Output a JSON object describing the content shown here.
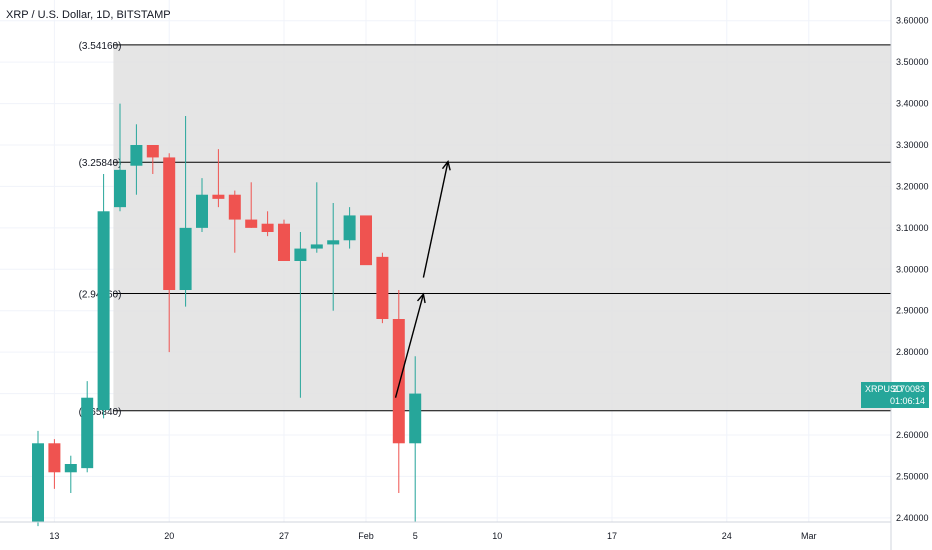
{
  "header": {
    "title": "XRP / U.S. Dollar, 1D, BITSTAMP"
  },
  "price_badge": {
    "symbol": "XRPUSD",
    "price": "2.70083",
    "countdown": "01:06:14"
  },
  "colors": {
    "up": "#26a69a",
    "down": "#ef5350",
    "zone": "#e0e0e0",
    "grid": "#f0f3fa",
    "text": "#131722"
  },
  "chart_data": {
    "type": "candlestick",
    "title": "XRP / U.S. Dollar, 1D, BITSTAMP",
    "ylim": [
      2.39,
      3.65
    ],
    "y_ticks": [
      "2.40000",
      "2.50000",
      "2.60000",
      "2.70000",
      "2.80000",
      "2.90000",
      "3.00000",
      "3.10000",
      "3.20000",
      "3.30000",
      "3.40000",
      "3.50000",
      "3.60000"
    ],
    "x_ticks": [
      {
        "label": "13",
        "index": 1
      },
      {
        "label": "20",
        "index": 8
      },
      {
        "label": "27",
        "index": 15
      },
      {
        "label": "Feb",
        "index": 20
      },
      {
        "label": "5",
        "index": 23
      },
      {
        "label": "10",
        "index": 28
      },
      {
        "label": "17",
        "index": 35
      },
      {
        "label": "24",
        "index": 42
      },
      {
        "label": "Mar",
        "index": 47
      }
    ],
    "candles": [
      {
        "o": 2.39,
        "h": 2.61,
        "l": 2.38,
        "c": 2.58
      },
      {
        "o": 2.58,
        "h": 2.59,
        "l": 2.47,
        "c": 2.51
      },
      {
        "o": 2.51,
        "h": 2.55,
        "l": 2.46,
        "c": 2.53
      },
      {
        "o": 2.52,
        "h": 2.73,
        "l": 2.51,
        "c": 2.69
      },
      {
        "o": 2.66,
        "h": 3.23,
        "l": 2.64,
        "c": 3.14
      },
      {
        "o": 3.15,
        "h": 3.4,
        "l": 3.14,
        "c": 3.24
      },
      {
        "o": 3.25,
        "h": 3.35,
        "l": 3.18,
        "c": 3.3
      },
      {
        "o": 3.3,
        "h": 3.3,
        "l": 3.23,
        "c": 3.27
      },
      {
        "o": 3.27,
        "h": 3.28,
        "l": 2.8,
        "c": 2.95
      },
      {
        "o": 2.95,
        "h": 3.37,
        "l": 2.91,
        "c": 3.1
      },
      {
        "o": 3.1,
        "h": 3.22,
        "l": 3.09,
        "c": 3.18
      },
      {
        "o": 3.18,
        "h": 3.29,
        "l": 3.15,
        "c": 3.17
      },
      {
        "o": 3.18,
        "h": 3.19,
        "l": 3.04,
        "c": 3.12
      },
      {
        "o": 3.12,
        "h": 3.21,
        "l": 3.1,
        "c": 3.1
      },
      {
        "o": 3.11,
        "h": 3.14,
        "l": 3.08,
        "c": 3.09
      },
      {
        "o": 3.11,
        "h": 3.12,
        "l": 3.02,
        "c": 3.02
      },
      {
        "o": 3.02,
        "h": 3.09,
        "l": 2.69,
        "c": 3.05
      },
      {
        "o": 3.05,
        "h": 3.21,
        "l": 3.04,
        "c": 3.06
      },
      {
        "o": 3.06,
        "h": 3.16,
        "l": 2.9,
        "c": 3.07
      },
      {
        "o": 3.07,
        "h": 3.15,
        "l": 3.05,
        "c": 3.13
      },
      {
        "o": 3.13,
        "h": 3.12,
        "l": 3.02,
        "c": 3.01
      },
      {
        "o": 3.03,
        "h": 3.04,
        "l": 2.87,
        "c": 2.88
      },
      {
        "o": 2.88,
        "h": 2.95,
        "l": 2.46,
        "c": 2.58
      },
      {
        "o": 2.58,
        "h": 2.79,
        "l": 2.39,
        "c": 2.7
      }
    ],
    "levels": [
      {
        "label": "(3.54160)",
        "value": 3.5416
      },
      {
        "label": "(3.25840)",
        "value": 3.2584
      },
      {
        "label": "(2.94160)",
        "value": 2.9416
      },
      {
        "label": "(2.65840)",
        "value": 2.6584
      }
    ],
    "zone": {
      "from_index": 4.6,
      "to_index": 49.5,
      "low": 2.6584,
      "high": 3.5416
    },
    "arrows": [
      {
        "x1": 21.8,
        "y1": 2.69,
        "x2": 23.5,
        "y2": 2.94
      },
      {
        "x1": 23.5,
        "y1": 2.98,
        "x2": 25.0,
        "y2": 3.26
      }
    ],
    "current_price": 2.70083
  }
}
